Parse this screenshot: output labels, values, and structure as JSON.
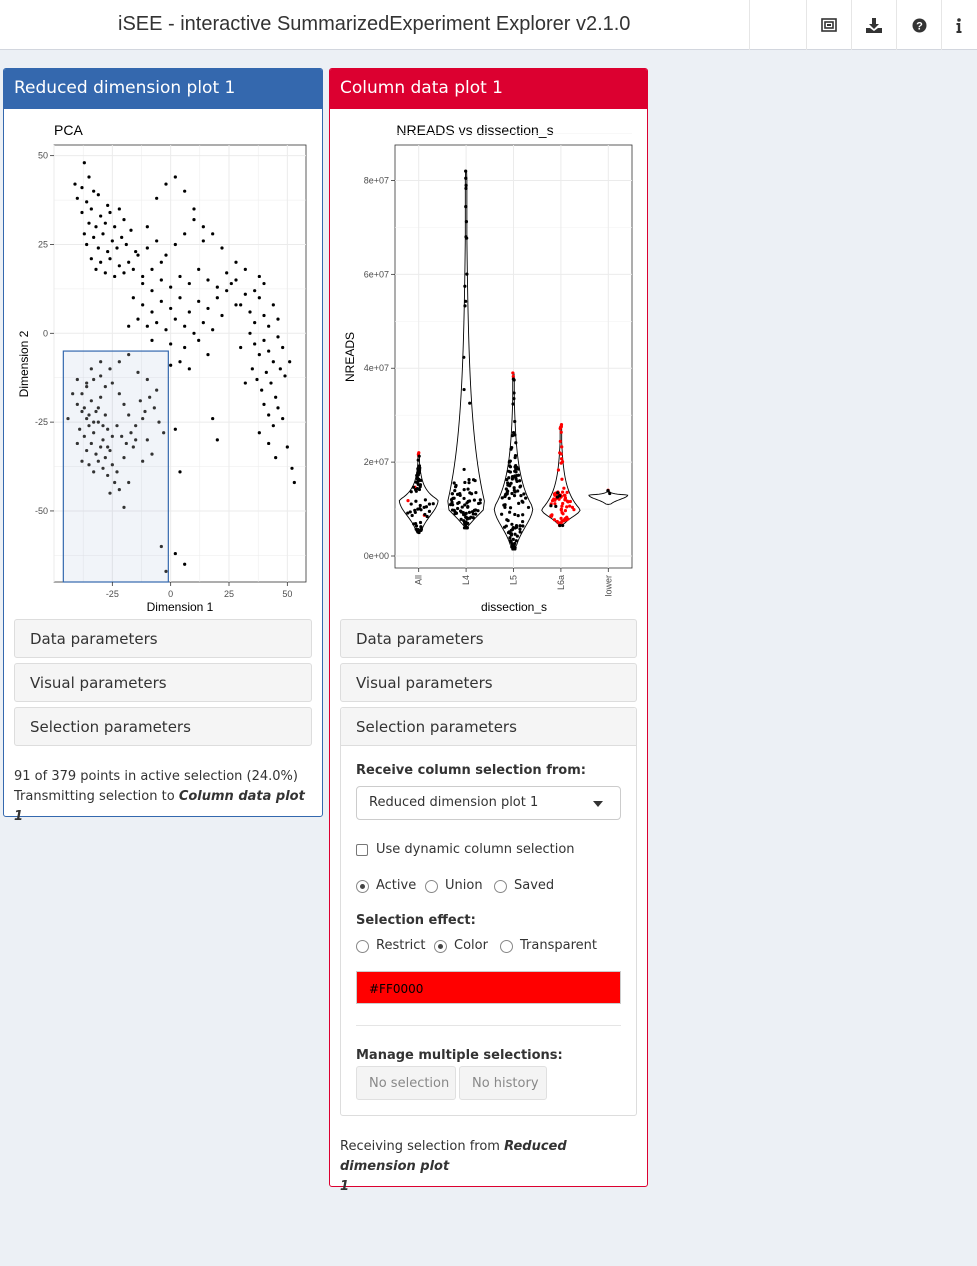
{
  "app": {
    "title": "iSEE - interactive SummarizedExperiment Explorer v2.1.0",
    "header_icons": [
      "organize-panels-icon",
      "download-icon",
      "question-circle-icon",
      "info-icon"
    ]
  },
  "colors": {
    "blue_panel": "#3468AE",
    "red_panel": "#DC0030",
    "selection_color": "#FF0000",
    "background": "#ECF0F5"
  },
  "panel1": {
    "title": "Reduced dimension plot 1",
    "plot": {
      "title": "PCA",
      "xlabel": "Dimension 1",
      "ylabel": "Dimension 2",
      "xticks": [
        "-25",
        "0",
        "25",
        "50"
      ],
      "yticks": [
        "50",
        "25",
        "0",
        "-25",
        "-50"
      ]
    },
    "sections": {
      "data": "Data parameters",
      "visual": "Visual parameters",
      "selection": "Selection parameters"
    },
    "status_line1": "91 of 379 points in active selection (24.0%)",
    "status_line2_prefix": "Transmitting selection to ",
    "status_line2_target": "Column data plot 1"
  },
  "panel2": {
    "title": "Column data plot 1",
    "plot": {
      "title": "NREADS vs dissection_s",
      "xlabel": "dissection_s",
      "ylabel": "NREADS",
      "xticks": [
        "All",
        "L4",
        "L5",
        "L6a",
        "lower"
      ],
      "yticks": [
        "8e+07",
        "6e+07",
        "4e+07",
        "2e+07",
        "0e+00"
      ]
    },
    "sections": {
      "data": "Data parameters",
      "visual": "Visual parameters",
      "selection": "Selection parameters"
    },
    "selection_params": {
      "receive_label": "Receive column selection from:",
      "receive_value": "Reduced dimension plot 1",
      "dynamic_label": "Use dynamic column selection",
      "dynamic_checked": false,
      "type_options": [
        "Active",
        "Union",
        "Saved"
      ],
      "type_selected": "Active",
      "effect_label": "Selection effect:",
      "effect_options": [
        "Restrict",
        "Color",
        "Transparent"
      ],
      "effect_selected": "Color",
      "color_value": "#FF0000",
      "manage_label": "Manage multiple selections:",
      "no_selection": "No selection",
      "no_history": "No history"
    },
    "receiving_prefix": "Receiving selection from ",
    "receiving_target_line1": "Reduced dimension plot",
    "receiving_target_line2": "1"
  },
  "chart_data": [
    {
      "type": "scatter",
      "title": "PCA",
      "xlabel": "Dimension 1",
      "ylabel": "Dimension 2",
      "xlim": [
        -50,
        58
      ],
      "ylim": [
        -70,
        53
      ],
      "n_points": 379,
      "brush": {
        "x": [
          -46,
          -1
        ],
        "y": [
          -70,
          -5
        ]
      },
      "points": [
        [
          -37,
          48
        ],
        [
          -41,
          42
        ],
        [
          -35,
          44
        ],
        [
          -38,
          41
        ],
        [
          -40,
          38
        ],
        [
          -33,
          40
        ],
        [
          -36,
          37
        ],
        [
          -31,
          39
        ],
        [
          -27,
          36
        ],
        [
          -34,
          35
        ],
        [
          -38,
          34
        ],
        [
          -30,
          33
        ],
        [
          -26,
          34
        ],
        [
          -22,
          35
        ],
        [
          -35,
          31
        ],
        [
          -32,
          30
        ],
        [
          -28,
          31
        ],
        [
          -24,
          30
        ],
        [
          -20,
          32
        ],
        [
          -37,
          28
        ],
        [
          -33,
          27
        ],
        [
          -29,
          28
        ],
        [
          -25,
          26
        ],
        [
          -21,
          27
        ],
        [
          -17,
          29
        ],
        [
          -36,
          25
        ],
        [
          -31,
          24
        ],
        [
          -27,
          23
        ],
        [
          -23,
          24
        ],
        [
          -19,
          25
        ],
        [
          -15,
          23
        ],
        [
          -34,
          21
        ],
        [
          -30,
          20
        ],
        [
          -26,
          21
        ],
        [
          -22,
          19
        ],
        [
          -18,
          20
        ],
        [
          -14,
          22
        ],
        [
          -10,
          24
        ],
        [
          -32,
          18
        ],
        [
          -28,
          17
        ],
        [
          -24,
          16
        ],
        [
          -20,
          17
        ],
        [
          -16,
          18
        ],
        [
          -12,
          16
        ],
        [
          -8,
          18
        ],
        [
          -4,
          20
        ],
        [
          -6,
          38
        ],
        [
          -2,
          42
        ],
        [
          2,
          44
        ],
        [
          6,
          40
        ],
        [
          10,
          35
        ],
        [
          14,
          30
        ],
        [
          -10,
          30
        ],
        [
          -6,
          26
        ],
        [
          -2,
          22
        ],
        [
          2,
          25
        ],
        [
          6,
          28
        ],
        [
          10,
          32
        ],
        [
          14,
          26
        ],
        [
          18,
          28
        ],
        [
          22,
          24
        ],
        [
          -12,
          14
        ],
        [
          -8,
          12
        ],
        [
          -4,
          15
        ],
        [
          0,
          13
        ],
        [
          4,
          16
        ],
        [
          8,
          14
        ],
        [
          12,
          18
        ],
        [
          16,
          15
        ],
        [
          20,
          13
        ],
        [
          24,
          17
        ],
        [
          28,
          15
        ],
        [
          -16,
          10
        ],
        [
          -12,
          8
        ],
        [
          -8,
          6
        ],
        [
          -4,
          9
        ],
        [
          0,
          7
        ],
        [
          4,
          10
        ],
        [
          8,
          6
        ],
        [
          12,
          9
        ],
        [
          16,
          7
        ],
        [
          20,
          10
        ],
        [
          24,
          12
        ],
        [
          28,
          8
        ],
        [
          32,
          11
        ],
        [
          -14,
          4
        ],
        [
          -10,
          2
        ],
        [
          -6,
          3
        ],
        [
          -2,
          1
        ],
        [
          2,
          4
        ],
        [
          6,
          2
        ],
        [
          10,
          0
        ],
        [
          14,
          3
        ],
        [
          18,
          1
        ],
        [
          22,
          5
        ],
        [
          -18,
          2
        ],
        [
          -8,
          -2
        ],
        [
          0,
          -3
        ],
        [
          6,
          -4
        ],
        [
          12,
          -2
        ],
        [
          16,
          -6
        ],
        [
          4,
          -8
        ],
        [
          8,
          -10
        ],
        [
          0,
          -9
        ],
        [
          30,
          8
        ],
        [
          34,
          6
        ],
        [
          36,
          3
        ],
        [
          38,
          10
        ],
        [
          40,
          5
        ],
        [
          42,
          2
        ],
        [
          44,
          8
        ],
        [
          46,
          4
        ],
        [
          34,
          0
        ],
        [
          36,
          -3
        ],
        [
          38,
          -6
        ],
        [
          40,
          -2
        ],
        [
          42,
          -5
        ],
        [
          44,
          -8
        ],
        [
          46,
          -1
        ],
        [
          48,
          -4
        ],
        [
          35,
          -10
        ],
        [
          37,
          -13
        ],
        [
          39,
          -16
        ],
        [
          41,
          -11
        ],
        [
          43,
          -14
        ],
        [
          45,
          -18
        ],
        [
          47,
          -10
        ],
        [
          49,
          -12
        ],
        [
          40,
          -20
        ],
        [
          42,
          -23
        ],
        [
          44,
          -26
        ],
        [
          46,
          -21
        ],
        [
          48,
          -24
        ],
        [
          38,
          -28
        ],
        [
          42,
          -31
        ],
        [
          45,
          -35
        ],
        [
          50,
          -32
        ],
        [
          52,
          -38
        ],
        [
          53,
          -42
        ],
        [
          51,
          -8
        ],
        [
          18,
          -24
        ],
        [
          20,
          -30
        ],
        [
          30,
          -4
        ],
        [
          32,
          -14
        ],
        [
          26,
          14
        ],
        [
          28,
          20
        ],
        [
          32,
          18
        ],
        [
          36,
          12
        ],
        [
          38,
          16
        ],
        [
          40,
          14
        ],
        [
          2,
          -27
        ],
        [
          4,
          -39
        ],
        [
          -4,
          -60
        ],
        [
          -2,
          -67
        ],
        [
          2,
          -62
        ],
        [
          6,
          -65
        ],
        [
          -44,
          -24
        ],
        [
          -40,
          -20
        ],
        [
          -38,
          -22
        ],
        [
          -36,
          -24
        ],
        [
          -34,
          -19
        ],
        [
          -32,
          -22
        ],
        [
          -30,
          -18
        ],
        [
          -28,
          -23
        ],
        [
          -39,
          -27
        ],
        [
          -37,
          -29
        ],
        [
          -35,
          -26
        ],
        [
          -33,
          -28
        ],
        [
          -31,
          -25
        ],
        [
          -29,
          -30
        ],
        [
          -27,
          -27
        ],
        [
          -40,
          -31
        ],
        [
          -36,
          -33
        ],
        [
          -34,
          -31
        ],
        [
          -32,
          -34
        ],
        [
          -30,
          -32
        ],
        [
          -28,
          -35
        ],
        [
          -26,
          -33
        ],
        [
          -38,
          -36
        ],
        [
          -35,
          -37
        ],
        [
          -33,
          -39
        ],
        [
          -31,
          -36
        ],
        [
          -29,
          -38
        ],
        [
          -27,
          -40
        ],
        [
          -25,
          -37
        ],
        [
          -23,
          -39
        ],
        [
          -38,
          -17
        ],
        [
          -36,
          -15
        ],
        [
          -33,
          -13
        ],
        [
          -30,
          -12
        ],
        [
          -28,
          -15
        ],
        [
          -25,
          -14
        ],
        [
          -22,
          -17
        ],
        [
          -20,
          -20
        ],
        [
          -18,
          -23
        ],
        [
          -15,
          -26
        ],
        [
          -12,
          -24
        ],
        [
          -10,
          -30
        ],
        [
          -8,
          -34
        ],
        [
          -12,
          -36
        ],
        [
          -16,
          -32
        ],
        [
          -20,
          -35
        ],
        [
          -24,
          -42
        ],
        [
          -22,
          -44
        ],
        [
          -18,
          -42
        ],
        [
          -26,
          -45
        ],
        [
          -20,
          -49
        ],
        [
          -36,
          -14
        ],
        [
          -34,
          -10
        ],
        [
          -30,
          -8
        ],
        [
          -26,
          -10
        ],
        [
          -22,
          -8
        ],
        [
          -18,
          -6
        ],
        [
          -14,
          -11
        ],
        [
          -10,
          -13
        ],
        [
          -6,
          -16
        ],
        [
          -40,
          -13
        ],
        [
          -42,
          -17
        ],
        [
          -37,
          -21
        ],
        [
          -35,
          -23
        ],
        [
          -33,
          -25
        ],
        [
          -31,
          -21
        ],
        [
          -29,
          -26
        ],
        [
          -27,
          -32
        ],
        [
          -25,
          -29
        ],
        [
          -23,
          -26
        ],
        [
          -21,
          -29
        ],
        [
          -19,
          -31
        ],
        [
          -17,
          -28
        ],
        [
          -15,
          -30
        ],
        [
          -13,
          -19
        ],
        [
          -11,
          -22
        ],
        [
          -9,
          -18
        ],
        [
          -7,
          -21
        ],
        [
          -5,
          -25
        ],
        [
          -3,
          -28
        ]
      ]
    },
    {
      "type": "violin",
      "title": "NREADS vs dissection_s",
      "xlabel": "dissection_s",
      "ylabel": "NREADS",
      "categories": [
        "All",
        "L4",
        "L5",
        "L6a",
        "lower"
      ],
      "ylim": [
        0,
        85000000
      ],
      "selected_color": "#FF0000",
      "violins": [
        {
          "category": "All",
          "min": 5000000,
          "max": 22000000,
          "median": 11500000,
          "mode": 12000000,
          "n_points": 75,
          "selected_fraction": 0.1
        },
        {
          "category": "L4",
          "min": 6000000,
          "max": 82000000,
          "median": 10500000,
          "mode": 11000000,
          "n_points": 95,
          "selected_fraction": 0
        },
        {
          "category": "L5",
          "min": 1500000,
          "max": 39000000,
          "median": 10000000,
          "mode": 10500000,
          "n_points": 120,
          "selected_fraction": 0.02
        },
        {
          "category": "L6a",
          "min": 6500000,
          "max": 28000000,
          "median": 10000000,
          "mode": 10000000,
          "n_points": 85,
          "selected_fraction": 0.9
        },
        {
          "category": "lower",
          "min": 11000000,
          "max": 14000000,
          "median": 13000000,
          "mode": 13000000,
          "n_points": 4,
          "selected_fraction": 0.25
        }
      ]
    }
  ]
}
